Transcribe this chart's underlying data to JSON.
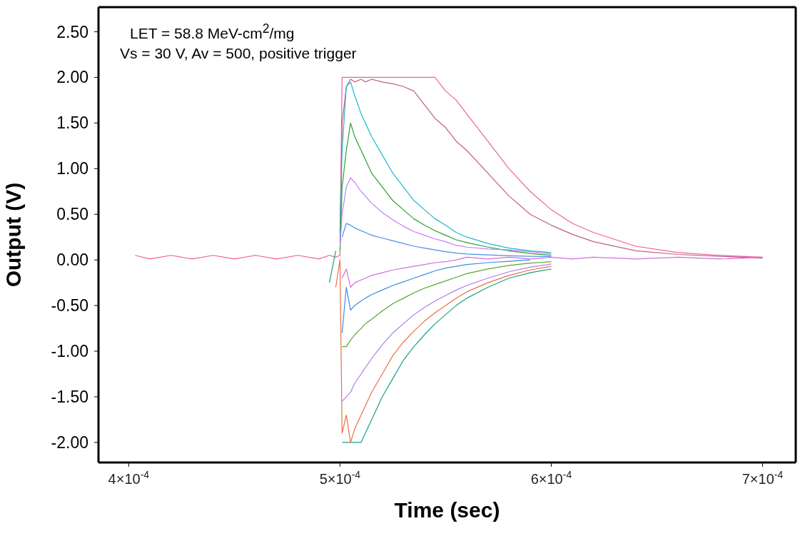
{
  "chart_data": {
    "type": "line",
    "xlabel": "Time (sec)",
    "ylabel": "Output (V)",
    "annotations": [
      "LET = 58.8 MeV-cm$^{2}$/mg",
      "Vs = 30 V, Av = 500, positive trigger"
    ],
    "x": [
      0.000403,
      0.00041,
      0.00042,
      0.00043,
      0.00044,
      0.00045,
      0.00046,
      0.00047,
      0.00048,
      0.00049,
      0.000495,
      0.000498,
      0.0005,
      0.000501,
      0.000503,
      0.000505,
      0.000507,
      0.00051,
      0.000512,
      0.000515,
      0.00052,
      0.000525,
      0.00053,
      0.000535,
      0.00054,
      0.000545,
      0.00055,
      0.000555,
      0.00056,
      0.00057,
      0.00058,
      0.00059,
      0.0006,
      0.00061,
      0.00062,
      0.00064,
      0.00066,
      0.00068,
      0.0007
    ],
    "series": [
      {
        "color": "#f0609a",
        "values": [
          0.05,
          0.01,
          0.05,
          0.01,
          0.05,
          0.01,
          0.05,
          0.01,
          0.05,
          0.01,
          0.05,
          0.03,
          0.05,
          2.0,
          2.0,
          2.0,
          2.0,
          2.0,
          2.0,
          2.0,
          2.0,
          2.0,
          2.0,
          2.0,
          2.0,
          2.0,
          1.85,
          1.75,
          1.6,
          1.3,
          1.0,
          0.75,
          0.55,
          0.4,
          0.3,
          0.15,
          0.08,
          0.05,
          0.03
        ]
      },
      {
        "color": "#c06080",
        "values": [
          null,
          null,
          null,
          null,
          null,
          null,
          null,
          null,
          null,
          null,
          null,
          null,
          0.3,
          1.5,
          1.9,
          1.98,
          1.95,
          1.98,
          1.95,
          1.98,
          1.95,
          1.93,
          1.9,
          1.85,
          1.7,
          1.55,
          1.45,
          1.3,
          1.2,
          0.95,
          0.7,
          0.5,
          0.38,
          0.28,
          0.2,
          0.1,
          0.06,
          0.04,
          0.02
        ]
      },
      {
        "color": "#1fb8d0",
        "values": [
          null,
          null,
          null,
          null,
          null,
          null,
          null,
          null,
          null,
          null,
          null,
          null,
          0.2,
          1.2,
          1.9,
          1.95,
          1.8,
          1.6,
          1.5,
          1.35,
          1.15,
          0.95,
          0.8,
          0.65,
          0.55,
          0.45,
          0.38,
          0.3,
          0.25,
          0.18,
          0.13,
          0.1,
          0.08,
          null,
          null,
          null,
          null,
          null,
          null
        ]
      },
      {
        "color": "#2ca02c",
        "values": [
          null,
          null,
          null,
          null,
          null,
          null,
          null,
          null,
          null,
          null,
          null,
          null,
          0.1,
          0.8,
          1.2,
          1.5,
          1.35,
          1.2,
          1.1,
          0.95,
          0.8,
          0.65,
          0.55,
          0.45,
          0.38,
          0.32,
          0.27,
          0.22,
          0.19,
          0.14,
          0.1,
          0.07,
          0.05,
          null,
          null,
          null,
          null,
          null,
          null
        ]
      },
      {
        "color": "#c77cff",
        "values": [
          null,
          null,
          null,
          null,
          null,
          null,
          null,
          null,
          null,
          null,
          null,
          null,
          0.15,
          0.5,
          0.8,
          0.9,
          0.85,
          0.75,
          0.7,
          0.62,
          0.52,
          0.44,
          0.37,
          0.31,
          0.27,
          0.23,
          0.2,
          0.16,
          0.14,
          0.12,
          0.11,
          0.09,
          0.065,
          null,
          null,
          null,
          null,
          null,
          null
        ]
      },
      {
        "color": "#4a90e2",
        "values": [
          null,
          null,
          null,
          null,
          null,
          null,
          null,
          null,
          null,
          null,
          null,
          null,
          null,
          0.25,
          0.4,
          0.38,
          0.35,
          0.32,
          0.3,
          0.27,
          0.24,
          0.21,
          0.18,
          0.15,
          0.13,
          0.11,
          0.09,
          0.075,
          0.065,
          0.055,
          0.045,
          0.04,
          0.035,
          null,
          null,
          null,
          null,
          null,
          null
        ]
      },
      {
        "color": "#1aa37a",
        "values": [
          null,
          null,
          null,
          null,
          null,
          null,
          null,
          null,
          null,
          null,
          -0.25,
          0.1,
          null,
          -2.0,
          -2.0,
          -2.0,
          -2.0,
          -2.0,
          -1.9,
          -1.75,
          -1.5,
          -1.3,
          -1.1,
          -0.95,
          -0.82,
          -0.7,
          -0.6,
          -0.5,
          -0.42,
          -0.3,
          -0.2,
          -0.14,
          -0.1,
          null,
          null,
          null,
          null,
          null,
          null
        ]
      },
      {
        "color": "#e8704a",
        "values": [
          null,
          null,
          null,
          null,
          null,
          null,
          null,
          null,
          null,
          null,
          null,
          -0.3,
          0.0,
          -1.9,
          -1.7,
          -2.0,
          -1.85,
          -1.7,
          -1.6,
          -1.45,
          -1.25,
          -1.05,
          -0.9,
          -0.78,
          -0.67,
          -0.58,
          -0.5,
          -0.42,
          -0.35,
          -0.25,
          -0.17,
          -0.11,
          -0.07,
          null,
          null,
          null,
          null,
          null,
          null
        ]
      },
      {
        "color": "#b07be8",
        "values": [
          null,
          null,
          null,
          null,
          null,
          null,
          null,
          null,
          null,
          null,
          null,
          null,
          null,
          -1.55,
          -1.5,
          -1.45,
          -1.35,
          -1.25,
          -1.18,
          -1.08,
          -0.93,
          -0.8,
          -0.7,
          -0.6,
          -0.52,
          -0.45,
          -0.39,
          -0.33,
          -0.28,
          -0.2,
          -0.13,
          -0.08,
          -0.045,
          null,
          null,
          null,
          null,
          null,
          null
        ]
      },
      {
        "color": "#52a832",
        "values": [
          null,
          null,
          null,
          null,
          null,
          null,
          null,
          null,
          null,
          null,
          null,
          null,
          null,
          -0.95,
          -0.95,
          -0.88,
          -0.82,
          -0.75,
          -0.7,
          -0.65,
          -0.56,
          -0.48,
          -0.42,
          -0.36,
          -0.31,
          -0.27,
          -0.23,
          -0.19,
          -0.15,
          -0.1,
          -0.06,
          -0.035,
          -0.02,
          null,
          null,
          null,
          null,
          null,
          null
        ]
      },
      {
        "color": "#3b8fe0",
        "values": [
          null,
          null,
          null,
          null,
          null,
          null,
          null,
          null,
          null,
          null,
          null,
          null,
          null,
          -0.8,
          -0.3,
          -0.55,
          -0.5,
          -0.45,
          -0.42,
          -0.38,
          -0.33,
          -0.28,
          -0.24,
          -0.2,
          -0.16,
          -0.12,
          -0.09,
          -0.07,
          -0.05,
          -0.03,
          -0.015,
          0.0,
          null,
          null,
          null,
          null,
          null,
          null,
          null
        ]
      },
      {
        "color": "#d070e0",
        "values": [
          null,
          null,
          null,
          null,
          null,
          null,
          null,
          null,
          null,
          null,
          null,
          null,
          null,
          -0.2,
          -0.1,
          -0.3,
          -0.25,
          -0.22,
          -0.2,
          -0.17,
          -0.14,
          -0.11,
          -0.09,
          -0.07,
          -0.05,
          -0.03,
          -0.02,
          0.0,
          0.03,
          0.01,
          0.03,
          0.01,
          0.03,
          0.01,
          0.03,
          0.01,
          0.03,
          0.01,
          0.03
        ]
      }
    ],
    "xlim": [
      0.0003857,
      0.0007157
    ],
    "xticks": [
      {
        "value": 0.0004,
        "label": "4×10$^{-4}$"
      },
      {
        "value": 0.0005,
        "label": "5×10$^{-4}$"
      },
      {
        "value": 0.0006,
        "label": "6×10$^{-4}$"
      },
      {
        "value": 0.0007,
        "label": "7×10$^{-4}$"
      }
    ],
    "ylim": [
      -2.22,
      2.77
    ],
    "yticks": [
      {
        "value": -2,
        "label": "-2.00"
      },
      {
        "value": -1.5,
        "label": "-1.50"
      },
      {
        "value": -1,
        "label": "-1.00"
      },
      {
        "value": -0.5,
        "label": "-0.50"
      },
      {
        "value": 0,
        "label": "0.00"
      },
      {
        "value": 0.5,
        "label": "0.50"
      },
      {
        "value": 1,
        "label": "1.00"
      },
      {
        "value": 1.5,
        "label": "1.50"
      },
      {
        "value": 2,
        "label": "2.00"
      },
      {
        "value": 2.5,
        "label": "2.50"
      }
    ],
    "grid": false,
    "legend": false
  }
}
